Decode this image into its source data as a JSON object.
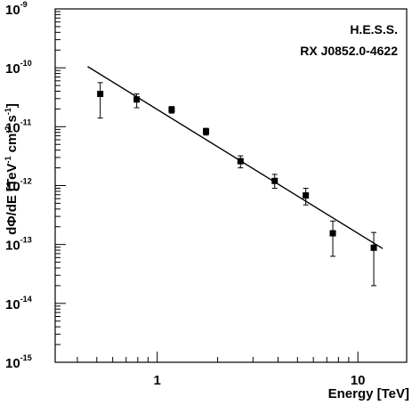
{
  "chart_data": {
    "type": "scatter",
    "title": "",
    "annotations": [
      "H.E.S.S.",
      "RX J0852.0-4622"
    ],
    "xlabel": "Energy [TeV]",
    "ylabel_parts": [
      "dΦ/dE [TeV",
      "-1",
      " cm",
      "-2",
      " s",
      "-1",
      "]"
    ],
    "x_scale": "log",
    "y_scale": "log",
    "xlim": [
      0.31,
      17.5
    ],
    "ylim": [
      1e-15,
      1e-09
    ],
    "x_ticks": [
      {
        "value": 1,
        "label": "1"
      },
      {
        "value": 10,
        "label": "10"
      }
    ],
    "y_ticks": [
      {
        "value": 1e-15,
        "base": "10",
        "exp": "-15"
      },
      {
        "value": 1e-14,
        "base": "10",
        "exp": "-14"
      },
      {
        "value": 1e-13,
        "base": "10",
        "exp": "-13"
      },
      {
        "value": 1e-12,
        "base": "10",
        "exp": "-12"
      },
      {
        "value": 1e-11,
        "base": "10",
        "exp": "-11"
      },
      {
        "value": 1e-10,
        "base": "10",
        "exp": "-10"
      },
      {
        "value": 1e-09,
        "base": "10",
        "exp": "-9"
      }
    ],
    "points": [
      {
        "x": 0.52,
        "y": 3.6e-11,
        "y_low": 1.4e-11,
        "y_high": 5.6e-11
      },
      {
        "x": 0.79,
        "y": 2.9e-11,
        "y_low": 2.1e-11,
        "y_high": 3.6e-11
      },
      {
        "x": 1.18,
        "y": 1.95e-11,
        "y_low": 1.7e-11,
        "y_high": 2.2e-11
      },
      {
        "x": 1.75,
        "y": 8.3e-12,
        "y_low": 7.2e-12,
        "y_high": 9.4e-12
      },
      {
        "x": 2.6,
        "y": 2.6e-12,
        "y_low": 2e-12,
        "y_high": 3.2e-12
      },
      {
        "x": 3.85,
        "y": 1.2e-12,
        "y_low": 9e-13,
        "y_high": 1.55e-12
      },
      {
        "x": 5.5,
        "y": 6.8e-13,
        "y_low": 4.7e-13,
        "y_high": 9e-13
      },
      {
        "x": 7.5,
        "y": 1.55e-13,
        "y_low": 6.3e-14,
        "y_high": 2.5e-13
      },
      {
        "x": 12.0,
        "y": 8.8e-14,
        "y_low": 2e-14,
        "y_high": 1.6e-13
      }
    ],
    "fit_line": {
      "x": [
        0.45,
        13.3
      ],
      "y": [
        1.05e-10,
        8.5e-14
      ]
    },
    "marker": "square",
    "color": "#000000"
  }
}
